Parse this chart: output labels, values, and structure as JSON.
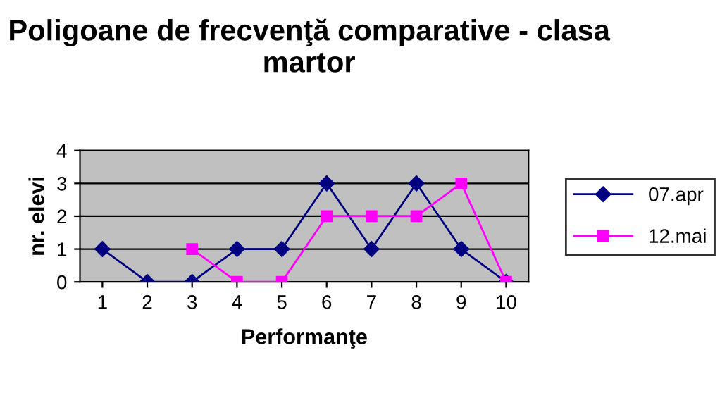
{
  "chart_data": {
    "type": "line",
    "title": "Poligoane de frecvenţă comparative - clasa martor",
    "xlabel": "Performanţe",
    "ylabel": "nr. elevi",
    "categories": [
      "1",
      "2",
      "3",
      "4",
      "5",
      "6",
      "7",
      "8",
      "9",
      "10"
    ],
    "series": [
      {
        "name": "07.apr",
        "color": "#000080",
        "marker": "diamond",
        "values": [
          1,
          0,
          0,
          1,
          1,
          3,
          1,
          3,
          1,
          0
        ]
      },
      {
        "name": "12.mai",
        "color": "#ff00ff",
        "marker": "square",
        "values": [
          null,
          null,
          1,
          0,
          0,
          2,
          2,
          2,
          3,
          0
        ]
      }
    ],
    "ylim": [
      0,
      4
    ],
    "yticks": [
      0,
      1,
      2,
      3,
      4
    ],
    "grid": "y",
    "legend": "right",
    "line_style": "solid"
  }
}
